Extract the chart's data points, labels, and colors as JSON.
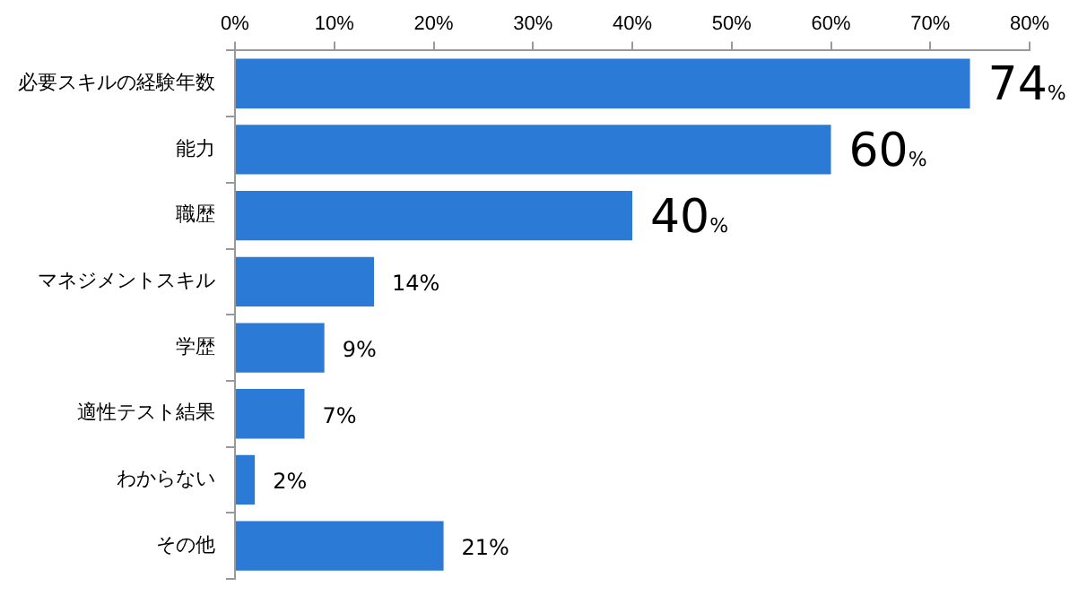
{
  "chart_data": {
    "type": "bar",
    "orientation": "horizontal",
    "categories": [
      "必要スキルの経験年数",
      "能力",
      "職歴",
      "マネジメントスキル",
      "学歴",
      "適性テスト結果",
      "わからない",
      "その他"
    ],
    "values": [
      74,
      60,
      40,
      14,
      9,
      7,
      2,
      21
    ],
    "value_labels": [
      "74%",
      "60%",
      "40%",
      "14%",
      "9%",
      "7%",
      "2%",
      "21%"
    ],
    "color": "#2b7bd6",
    "xlim": [
      0,
      80
    ],
    "xticks": [
      {
        "value": 0,
        "label": "0%"
      },
      {
        "value": 10,
        "label": "10%"
      },
      {
        "value": 20,
        "label": "20%"
      },
      {
        "value": 30,
        "label": "30%"
      },
      {
        "value": 40,
        "label": "40%"
      },
      {
        "value": 50,
        "label": "50%"
      },
      {
        "value": 60,
        "label": "60%"
      },
      {
        "value": 70,
        "label": "70%"
      },
      {
        "value": 80,
        "label": "80%"
      }
    ],
    "grid": false,
    "legend": false
  }
}
